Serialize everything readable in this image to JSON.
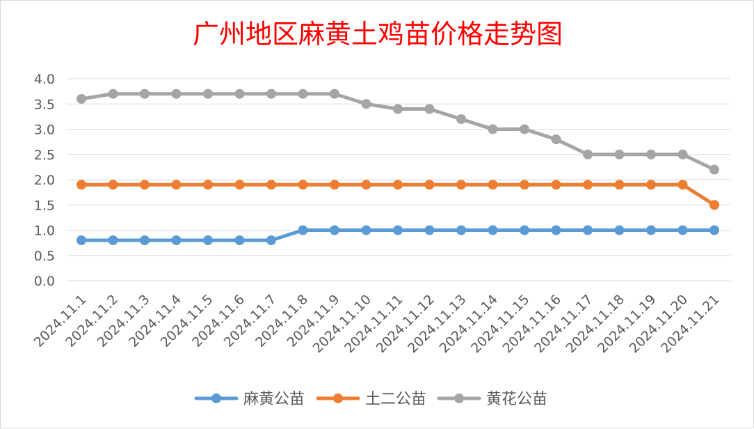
{
  "chart_data": {
    "type": "line",
    "title": "广州地区麻黄土鸡苗价格走势图",
    "xlabel": "",
    "ylabel": "",
    "ylim": [
      0,
      4
    ],
    "y_ticks": [
      "0.0",
      "0.5",
      "1.0",
      "1.5",
      "2.0",
      "2.5",
      "3.0",
      "3.5",
      "4.0"
    ],
    "grid": true,
    "legend_position": "bottom",
    "categories": [
      "2024.11.1",
      "2024.11.2",
      "2024.11.3",
      "2024.11.4",
      "2024.11.5",
      "2024.11.6",
      "2024.11.7",
      "2024.11.8",
      "2024.11.9",
      "2024.11.10",
      "2024.11.11",
      "2024.11.12",
      "2024.11.13",
      "2024.11.14",
      "2024.11.15",
      "2024.11.16",
      "2024.11.17",
      "2024.11.18",
      "2024.11.19",
      "2024.11.20",
      "2024.11.21"
    ],
    "series": [
      {
        "name": "麻黄公苗",
        "color": "#5b9bd5",
        "values": [
          0.8,
          0.8,
          0.8,
          0.8,
          0.8,
          0.8,
          0.8,
          1.0,
          1.0,
          1.0,
          1.0,
          1.0,
          1.0,
          1.0,
          1.0,
          1.0,
          1.0,
          1.0,
          1.0,
          1.0,
          1.0
        ]
      },
      {
        "name": "土二公苗",
        "color": "#ed7d31",
        "values": [
          1.9,
          1.9,
          1.9,
          1.9,
          1.9,
          1.9,
          1.9,
          1.9,
          1.9,
          1.9,
          1.9,
          1.9,
          1.9,
          1.9,
          1.9,
          1.9,
          1.9,
          1.9,
          1.9,
          1.9,
          1.5
        ]
      },
      {
        "name": "黄花公苗",
        "color": "#a5a5a5",
        "values": [
          3.6,
          3.7,
          3.7,
          3.7,
          3.7,
          3.7,
          3.7,
          3.7,
          3.7,
          3.5,
          3.4,
          3.4,
          3.2,
          3.0,
          3.0,
          2.8,
          2.5,
          2.5,
          2.5,
          2.5,
          2.2
        ]
      }
    ],
    "title_color": "#ff0000"
  }
}
